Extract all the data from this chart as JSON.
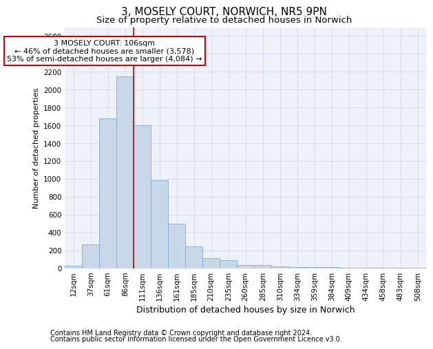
{
  "title_line1": "3, MOSELY COURT, NORWICH, NR5 9PN",
  "title_line2": "Size of property relative to detached houses in Norwich",
  "xlabel": "Distribution of detached houses by size in Norwich",
  "ylabel": "Number of detached properties",
  "categories": [
    "12sqm",
    "37sqm",
    "61sqm",
    "86sqm",
    "111sqm",
    "136sqm",
    "161sqm",
    "185sqm",
    "210sqm",
    "235sqm",
    "260sqm",
    "285sqm",
    "310sqm",
    "334sqm",
    "359sqm",
    "384sqm",
    "409sqm",
    "434sqm",
    "458sqm",
    "483sqm",
    "508sqm"
  ],
  "values": [
    25,
    270,
    1680,
    2150,
    1600,
    980,
    500,
    245,
    110,
    90,
    35,
    35,
    20,
    10,
    10,
    10,
    5,
    5,
    5,
    2,
    2
  ],
  "bar_color": "#c8d8e8",
  "bar_edge_color": "#7aace0",
  "vline_color": "#cc0000",
  "annotation_text": "3 MOSELY COURT: 106sqm\n← 46% of detached houses are smaller (3,578)\n53% of semi-detached houses are larger (4,084) →",
  "annotation_box_color": "white",
  "annotation_box_edge": "#cc0000",
  "ylim": [
    0,
    2700
  ],
  "yticks": [
    0,
    200,
    400,
    600,
    800,
    1000,
    1200,
    1400,
    1600,
    1800,
    2000,
    2200,
    2400,
    2600
  ],
  "grid_color": "#d0d8e8",
  "plot_bg_color": "#eef2f8",
  "footer_line1": "Contains HM Land Registry data © Crown copyright and database right 2024.",
  "footer_line2": "Contains public sector information licensed under the Open Government Licence v3.0.",
  "title_fontsize": 11,
  "subtitle_fontsize": 9.5,
  "tick_fontsize": 7.5,
  "xlabel_fontsize": 9,
  "ylabel_fontsize": 8,
  "footer_fontsize": 7
}
